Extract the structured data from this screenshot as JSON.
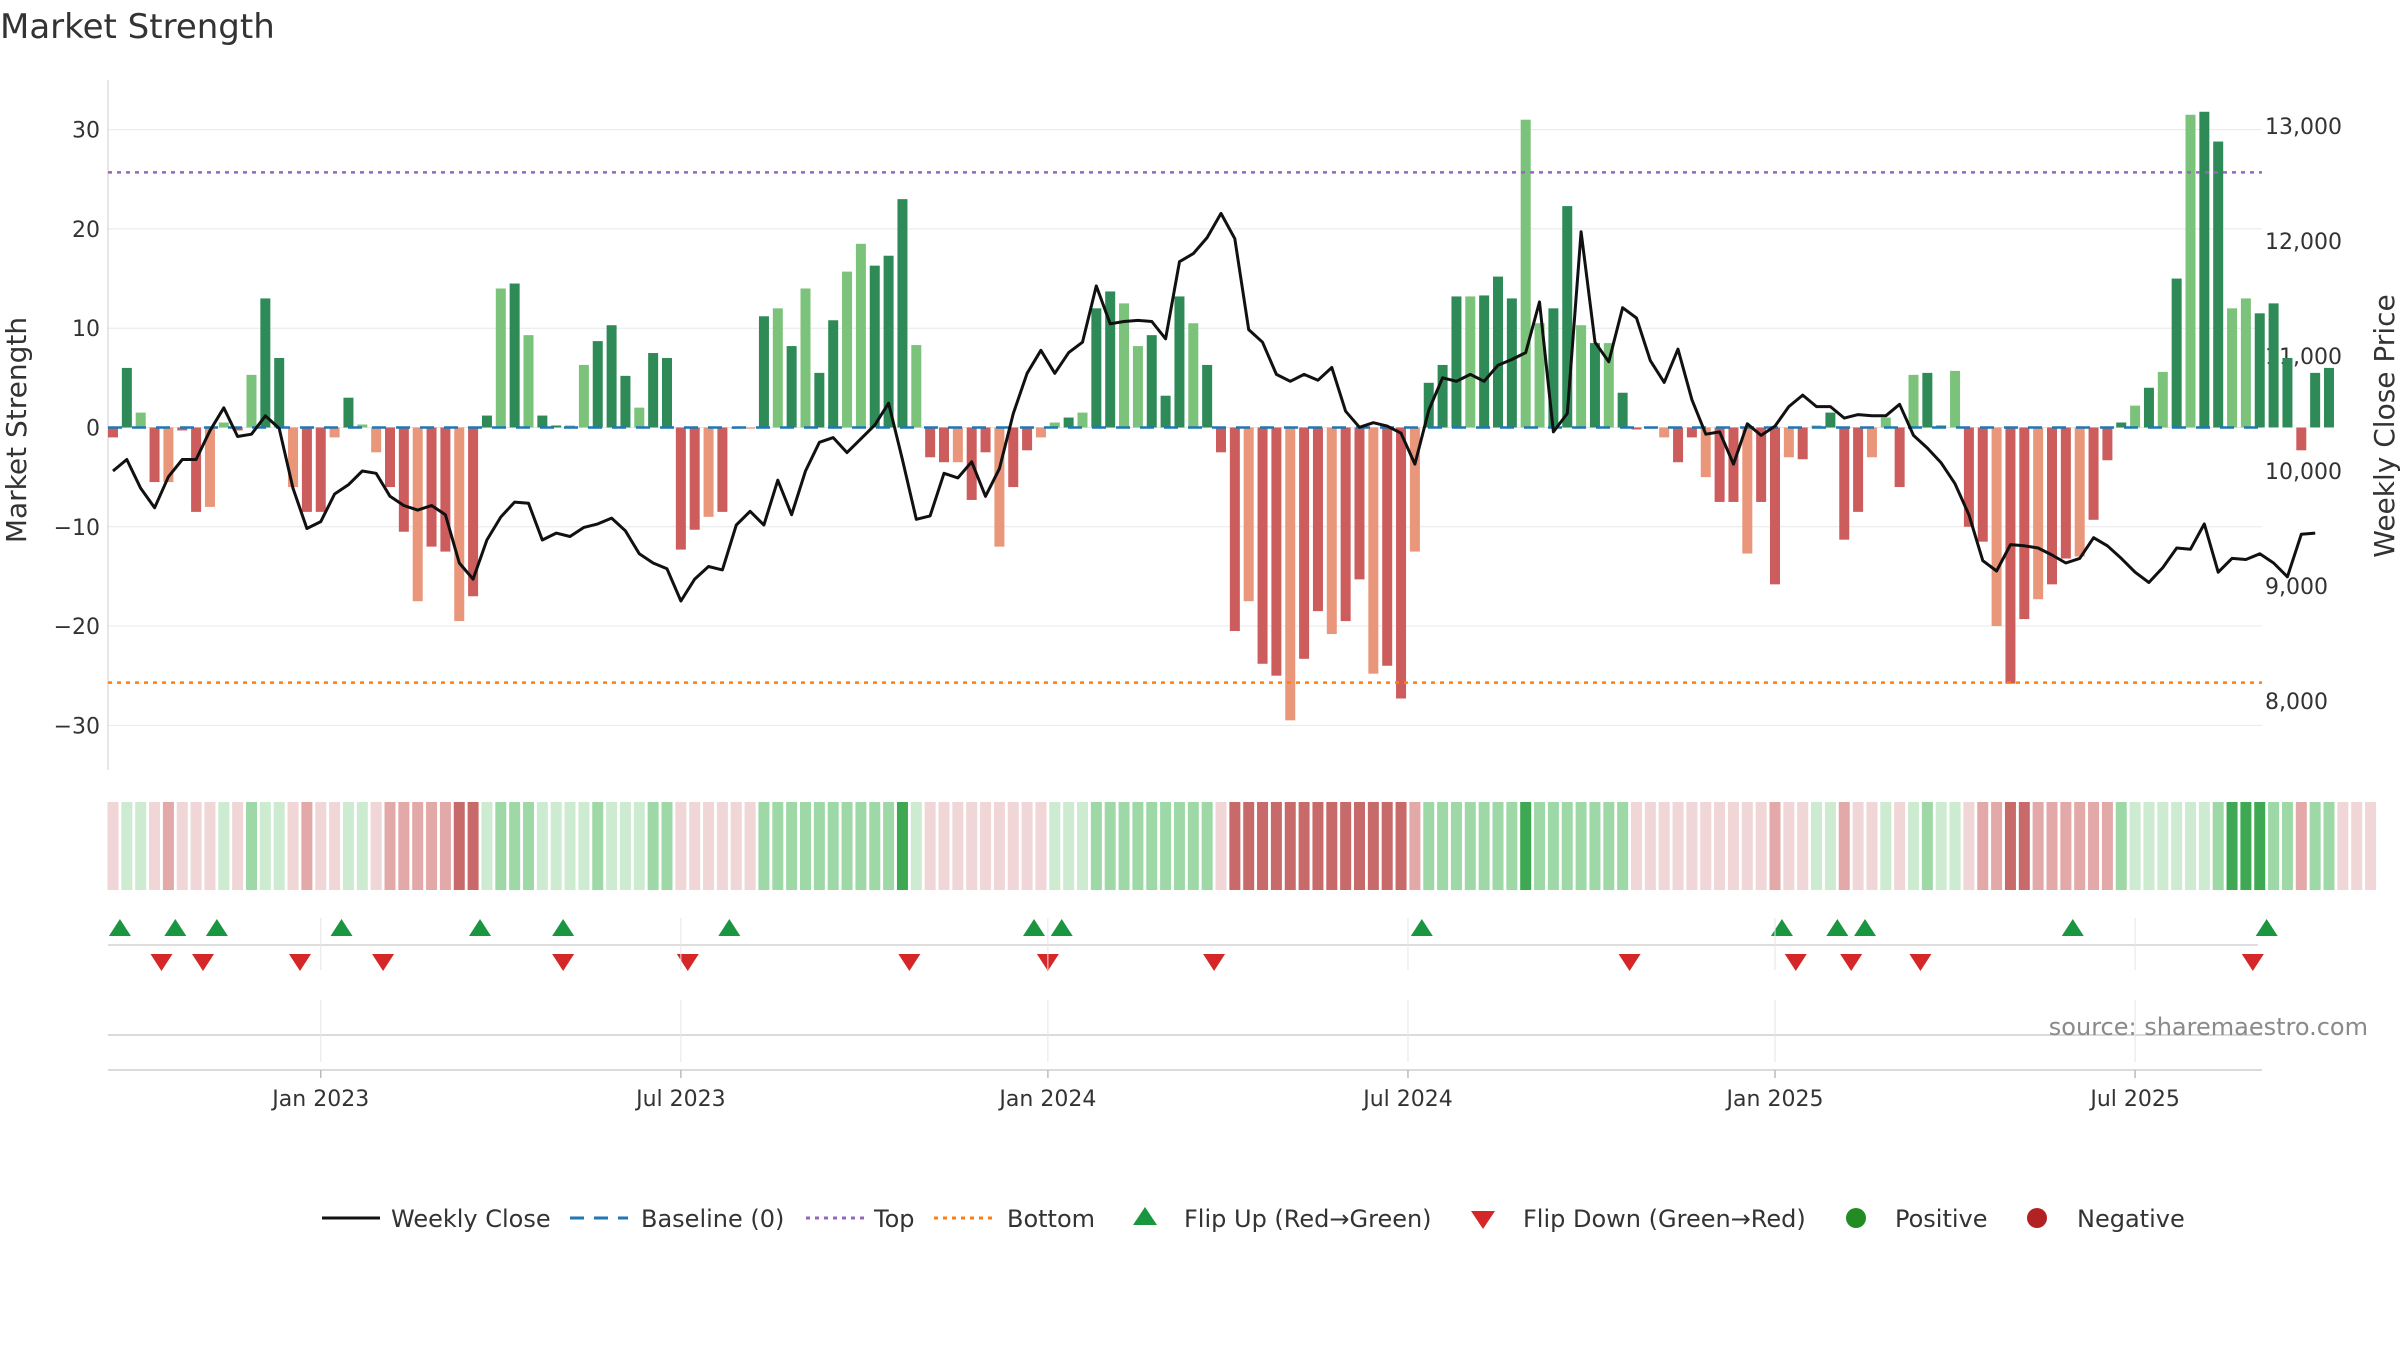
{
  "chart_data": {
    "type": "bar",
    "title": "Market Strength",
    "ylabel_left": "Market Strength",
    "ylabel_right": "Weekly Close Price",
    "source": "source: sharemaestro.com",
    "left_axis": {
      "range": [
        -34.5,
        35
      ],
      "ticks": [
        30,
        20,
        10,
        0,
        -10,
        -20,
        -30
      ],
      "tick_labels": [
        "30",
        "20",
        "10",
        "0",
        "−10",
        "−20",
        "−30"
      ]
    },
    "right_axis": {
      "range": [
        7400,
        13400
      ],
      "ticks": [
        13000,
        12000,
        11000,
        10000,
        9000,
        8000
      ],
      "tick_labels": [
        "13,000",
        "12,000",
        "11,000",
        "10,000",
        "9,000",
        "8,000"
      ]
    },
    "x_axis": {
      "ticks": [
        {
          "week": 15,
          "label": "Jan 2023"
        },
        {
          "week": 41,
          "label": "Jul 2023"
        },
        {
          "week": 67.5,
          "label": "Jan 2024"
        },
        {
          "week": 93.5,
          "label": "Jul 2024"
        },
        {
          "week": 120,
          "label": "Jan 2025"
        },
        {
          "week": 146,
          "label": "Jul 2025"
        }
      ]
    },
    "thresholds": {
      "top": 25.7,
      "bottom": -25.7,
      "baseline": 0
    },
    "strength": [
      -1,
      6,
      1.5,
      -5.5,
      -5.5,
      -0.3,
      -8.5,
      -8,
      0.5,
      -0.3,
      5.3,
      13,
      7,
      -6,
      -8.5,
      -8.5,
      -1,
      3,
      0.3,
      -2.5,
      -6,
      -10.5,
      -17.5,
      -12,
      -12.5,
      -19.5,
      -17,
      1.2,
      14,
      14.5,
      9.3,
      1.2,
      0.2,
      0.2,
      6.3,
      8.7,
      10.3,
      5.2,
      2,
      7.5,
      7,
      -12.3,
      -10.3,
      -9,
      -8.5,
      -0.1,
      -0.1,
      11.2,
      12,
      8.2,
      14,
      5.5,
      10.8,
      15.7,
      18.5,
      16.3,
      17.3,
      23,
      8.3,
      -3,
      -3.5,
      -3.5,
      -7.3,
      -2.5,
      -12,
      -6,
      -2.3,
      -1,
      0.5,
      1,
      1.5,
      12,
      13.7,
      12.5,
      8.2,
      9.3,
      3.2,
      13.2,
      10.5,
      6.3,
      -2.5,
      -20.5,
      -17.5,
      -23.8,
      -25,
      -29.5,
      -23.3,
      -18.5,
      -20.8,
      -19.5,
      -15.3,
      -24.8,
      -24,
      -27.3,
      -12.5,
      4.5,
      6.3,
      13.2,
      13.2,
      13.3,
      15.2,
      13,
      31,
      10.5,
      12,
      22.3,
      10.3,
      8.5,
      8.5,
      3.5,
      -0.2,
      -0.1,
      -1,
      -3.5,
      -1,
      -5,
      -7.5,
      -7.5,
      -12.7,
      -7.5,
      -15.8,
      -3,
      -3.2,
      0.2,
      1.5,
      -11.3,
      -8.5,
      -3,
      1,
      -6,
      5.3,
      5.5,
      0.2,
      5.7,
      -10,
      -11.5,
      -20,
      -25.8,
      -19.3,
      -17.3,
      -15.8,
      -13.2,
      -13,
      -9.3,
      -3.3,
      0.5,
      2.2,
      4,
      5.6,
      15,
      31.5,
      31.8,
      28.8,
      12,
      13,
      11.5,
      12.5,
      7,
      -2.3,
      5.5,
      6
    ],
    "weekly_close": [
      10000,
      10100,
      9850,
      9680,
      9950,
      10100,
      10100,
      10350,
      10550,
      10300,
      10320,
      10480,
      10370,
      9850,
      9500,
      9560,
      9800,
      9880,
      10000,
      9980,
      9780,
      9700,
      9660,
      9700,
      9620,
      9200,
      9060,
      9400,
      9600,
      9730,
      9720,
      9400,
      9460,
      9430,
      9510,
      9540,
      9590,
      9480,
      9280,
      9200,
      9150,
      8870,
      9060,
      9170,
      9140,
      9530,
      9650,
      9530,
      9920,
      9620,
      10000,
      10250,
      10290,
      10160,
      10280,
      10400,
      10590,
      10100,
      9580,
      9610,
      9980,
      9940,
      10080,
      9780,
      10020,
      10500,
      10850,
      11050,
      10850,
      11030,
      11120,
      11610,
      11280,
      11300,
      11310,
      11300,
      11150,
      11820,
      11890,
      12030,
      12240,
      12020,
      11230,
      11120,
      10840,
      10780,
      10840,
      10790,
      10900,
      10520,
      10380,
      10420,
      10390,
      10330,
      10060,
      10530,
      10810,
      10780,
      10840,
      10780,
      10920,
      10970,
      11030,
      11470,
      10340,
      10500,
      12080,
      11120,
      10950,
      11420,
      11330,
      10960,
      10770,
      11060,
      10620,
      10320,
      10340,
      10060,
      10410,
      10310,
      10390,
      10560,
      10660,
      10560,
      10560,
      10460,
      10490,
      10480,
      10480,
      10580,
      10310,
      10200,
      10070,
      9890,
      9620,
      9220,
      9130,
      9360,
      9350,
      9330,
      9270,
      9200,
      9240,
      9420,
      9350,
      9240,
      9120,
      9030,
      9160,
      9330,
      9320,
      9540,
      9120,
      9240,
      9230,
      9280,
      9200,
      9080,
      9450,
      9460
    ],
    "color_strip_shades": [
      "l",
      "l",
      "l",
      "l",
      "m",
      "l",
      "l",
      "l",
      "l",
      "l",
      "m",
      "l",
      "l",
      "l",
      "m",
      "l",
      "l",
      "l",
      "l",
      "l",
      "m",
      "m",
      "m",
      "m",
      "m",
      "h",
      "h",
      "l",
      "m",
      "m",
      "m",
      "l",
      "l",
      "l",
      "l",
      "m",
      "l",
      "l",
      "l",
      "m",
      "m",
      "l",
      "l",
      "l",
      "l",
      "l",
      "l",
      "m",
      "m",
      "m",
      "m",
      "m",
      "m",
      "m",
      "m",
      "m",
      "m",
      "h",
      "l",
      "l",
      "l",
      "l",
      "l",
      "l",
      "l",
      "l",
      "l",
      "l",
      "l",
      "l",
      "l",
      "m",
      "m",
      "m",
      "m",
      "m",
      "m",
      "m",
      "m",
      "m",
      "l",
      "h",
      "h",
      "h",
      "h",
      "h",
      "h",
      "h",
      "h",
      "h",
      "h",
      "h",
      "h",
      "h",
      "m",
      "m",
      "m",
      "m",
      "m",
      "m",
      "m",
      "m",
      "h",
      "m",
      "m",
      "m",
      "m",
      "m",
      "m",
      "m",
      "l",
      "l",
      "l",
      "l",
      "l",
      "l",
      "l",
      "l",
      "l",
      "l",
      "m",
      "l",
      "l",
      "l",
      "l",
      "m",
      "l",
      "l",
      "l",
      "l",
      "l",
      "m",
      "l",
      "l",
      "l",
      "m",
      "m",
      "h",
      "h",
      "m",
      "m",
      "m",
      "m",
      "m",
      "m",
      "m",
      "l",
      "l",
      "l",
      "l",
      "l",
      "l",
      "m",
      "h",
      "h",
      "h",
      "m",
      "m",
      "m",
      "m",
      "m",
      "l",
      "l",
      "l"
    ],
    "flip_up_weeks": [
      0.5,
      4.5,
      7.5,
      16.5,
      26.5,
      32.5,
      44.5,
      66.5,
      68.5,
      94.5,
      120.5,
      124.5,
      126.5,
      141.5,
      155.5
    ],
    "flip_down_weeks": [
      3.5,
      6.5,
      13.5,
      19.5,
      32.5,
      41.5,
      57.5,
      67.5,
      79.5,
      109.5,
      121.5,
      125.5,
      130.5,
      154.5
    ],
    "legend": [
      "Weekly Close",
      "Baseline (0)",
      "Top",
      "Bottom",
      "Flip Up (Red→Green)",
      "Flip Down (Green→Red)",
      "Positive",
      "Negative"
    ],
    "colors": {
      "bar_pos_dark": "#2e8b57",
      "bar_pos_light": "#7bc27b",
      "bar_neg_dark": "#cd5c5c",
      "bar_neg_light": "#e9967a",
      "line": "#111111",
      "baseline": "#1f77b4",
      "top": "#9467bd",
      "bottom": "#ff7f0e",
      "flip_up": "#1a9641",
      "flip_down": "#d62728",
      "positive": "#228b22",
      "negative": "#b22222",
      "strip_pos": [
        "#cdebd0",
        "#9ed8a6",
        "#3ea853"
      ],
      "strip_neg": [
        "#f0d6d6",
        "#e3a8a8",
        "#c96a6a"
      ]
    }
  }
}
